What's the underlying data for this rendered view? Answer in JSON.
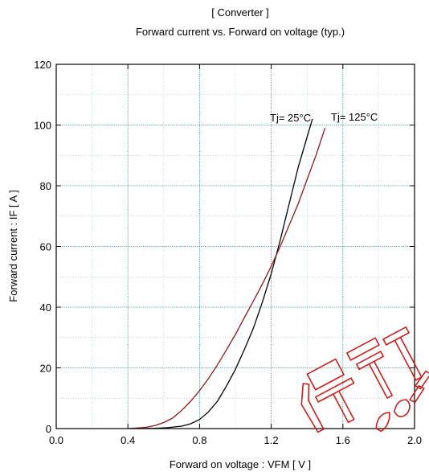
{
  "chart_data": {
    "type": "line",
    "title": "[ Converter ]",
    "subtitle": "Forward current  vs.  Forward on voltage  (typ.)",
    "xlabel": "Forward on voltage  :  VFM  [ V ]",
    "ylabel": "Forward current  :  IF  [ A ]",
    "xlim": [
      0.0,
      2.0
    ],
    "ylim": [
      0,
      120
    ],
    "xticks": [
      "0.0",
      "0.4",
      "0.8",
      "1.2",
      "1.6",
      "2.0"
    ],
    "yticks": [
      "0",
      "20",
      "40",
      "60",
      "80",
      "100",
      "120"
    ],
    "grid": true,
    "series": [
      {
        "name": "Tj= 25°C",
        "color": "#000000",
        "x": [
          0.45,
          0.55,
          0.62,
          0.7,
          0.75,
          0.8,
          0.85,
          0.9,
          0.95,
          1.0,
          1.05,
          1.1,
          1.15,
          1.2,
          1.25,
          1.3,
          1.35,
          1.4,
          1.43
        ],
        "y": [
          0,
          0.1,
          0.3,
          0.8,
          1.6,
          3.0,
          5.5,
          9.0,
          14,
          19.5,
          26,
          33,
          41.5,
          51,
          62,
          74,
          86,
          96,
          102
        ]
      },
      {
        "name": "Tj= 125°C",
        "color": "#8b1a1a",
        "x": [
          0.4,
          0.5,
          0.55,
          0.6,
          0.65,
          0.7,
          0.75,
          0.8,
          0.85,
          0.9,
          0.95,
          1.0,
          1.05,
          1.1,
          1.15,
          1.2,
          1.25,
          1.3,
          1.35,
          1.4,
          1.45,
          1.5
        ],
        "y": [
          0,
          0.4,
          1.0,
          2.0,
          3.5,
          6.0,
          9.0,
          12.5,
          16.5,
          21,
          26,
          31,
          36.5,
          42,
          47.5,
          53.5,
          60,
          67,
          74,
          82,
          90,
          99
        ]
      }
    ]
  }
}
